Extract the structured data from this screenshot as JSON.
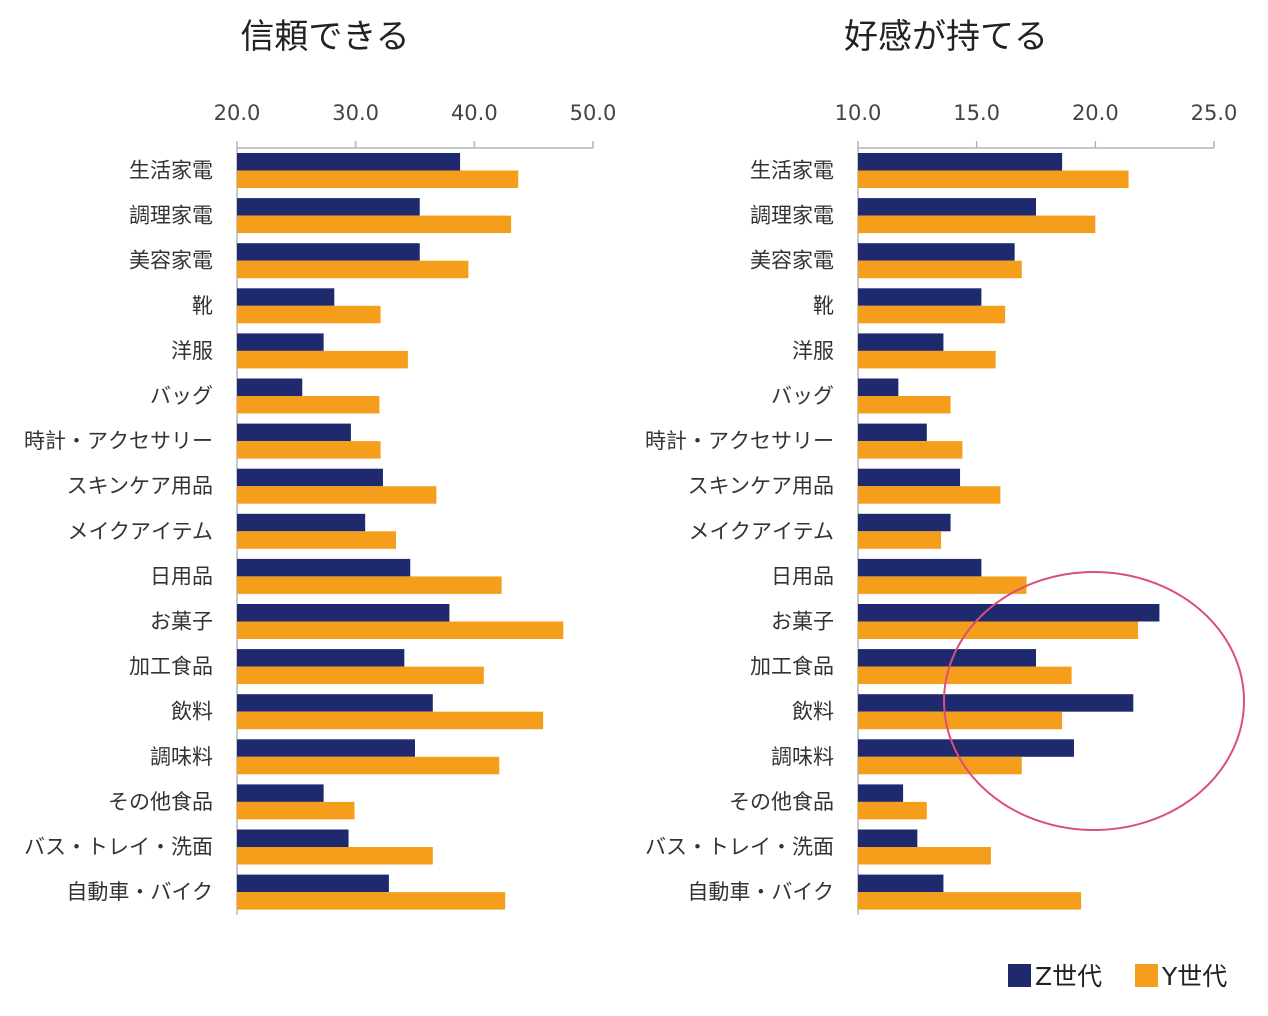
{
  "colors": {
    "z": "#1f2a6e",
    "y": "#f59e1c",
    "axis": "#b5b5b5",
    "circle": "#d94f7a"
  },
  "legend": {
    "z_label": "Z世代",
    "y_label": "Y世代"
  },
  "chart_data": [
    {
      "type": "bar",
      "orientation": "horizontal",
      "title": "信頼できる",
      "xlim": [
        20,
        50
      ],
      "ticks": [
        "20.0",
        "30.0",
        "40.0",
        "50.0"
      ],
      "tick_values": [
        20,
        30,
        40,
        50
      ],
      "categories": [
        "生活家電",
        "調理家電",
        "美容家電",
        "靴",
        "洋服",
        "バッグ",
        "時計・アクセサリー",
        "スキンケア用品",
        "メイクアイテム",
        "日用品",
        "お菓子",
        "加工食品",
        "飲料",
        "調味料",
        "その他食品",
        "バス・トレイ・洗面",
        "自動車・バイク"
      ],
      "series": [
        {
          "name": "Z世代",
          "values": [
            38.8,
            35.4,
            35.4,
            28.2,
            27.3,
            25.5,
            29.6,
            32.3,
            30.8,
            34.6,
            37.9,
            34.1,
            36.5,
            35.0,
            27.3,
            29.4,
            32.8
          ]
        },
        {
          "name": "Y世代",
          "values": [
            43.7,
            43.1,
            39.5,
            32.1,
            34.4,
            32.0,
            32.1,
            36.8,
            33.4,
            42.3,
            47.5,
            40.8,
            45.8,
            42.1,
            29.9,
            36.5,
            42.6
          ]
        }
      ]
    },
    {
      "type": "bar",
      "orientation": "horizontal",
      "title": "好感が持てる",
      "xlim": [
        10,
        25
      ],
      "ticks": [
        "10.0",
        "15.0",
        "20.0",
        "25.0"
      ],
      "tick_values": [
        10,
        15,
        20,
        25
      ],
      "categories": [
        "生活家電",
        "調理家電",
        "美容家電",
        "靴",
        "洋服",
        "バッグ",
        "時計・アクセサリー",
        "スキンケア用品",
        "メイクアイテム",
        "日用品",
        "お菓子",
        "加工食品",
        "飲料",
        "調味料",
        "その他食品",
        "バス・トレイ・洗面",
        "自動車・バイク"
      ],
      "series": [
        {
          "name": "Z世代",
          "values": [
            18.6,
            17.5,
            16.6,
            15.2,
            13.6,
            11.7,
            12.9,
            14.3,
            13.9,
            15.2,
            22.7,
            17.5,
            21.6,
            19.1,
            11.9,
            12.5,
            13.6
          ]
        },
        {
          "name": "Y世代",
          "values": [
            21.4,
            20.0,
            16.9,
            16.2,
            15.8,
            13.9,
            14.4,
            16.0,
            13.5,
            17.1,
            21.8,
            19.0,
            18.6,
            16.9,
            12.9,
            15.6,
            19.4
          ]
        }
      ]
    }
  ]
}
